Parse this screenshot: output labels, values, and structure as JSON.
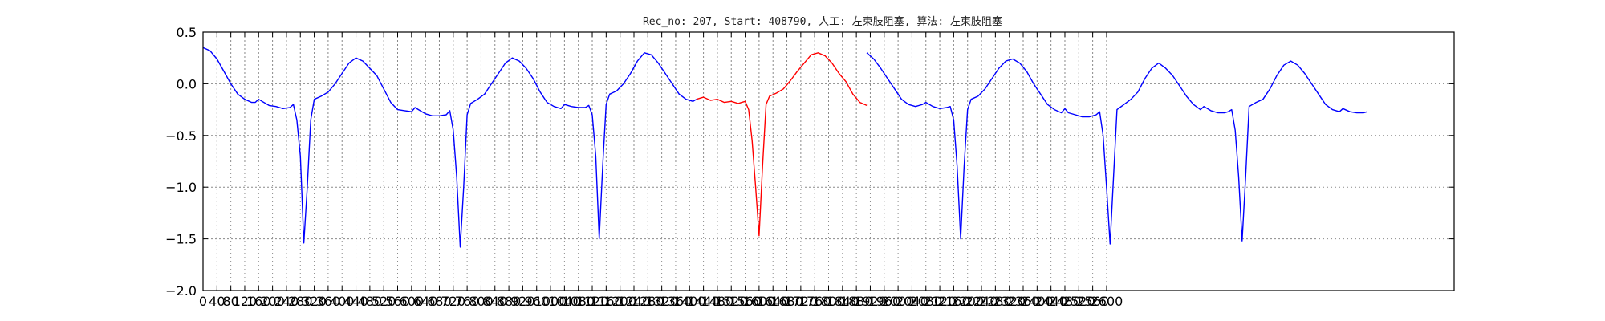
{
  "chart_data": {
    "type": "line",
    "title": "Rec_no: 207, Start: 408790, 人工: 左束肢阻塞, 算法: 左束肢阻塞",
    "xlabel": "",
    "ylabel": "",
    "xlim": [
      0,
      3600
    ],
    "ylim": [
      -2.0,
      0.5
    ],
    "x_ticks": [
      0,
      40,
      80,
      120,
      160,
      200,
      240,
      280,
      320,
      360,
      400,
      440,
      480,
      520,
      560,
      600,
      640,
      680,
      720,
      760,
      800,
      840,
      880,
      920,
      960,
      1000,
      1040,
      1080,
      1120,
      1160,
      1200,
      1240,
      1280,
      1320,
      1360,
      1400,
      1440,
      1480,
      1520,
      1560,
      1600,
      1640,
      1680,
      1720,
      1760,
      1800,
      1840,
      1880,
      1920,
      1960,
      2000,
      2040,
      2080,
      2120,
      2160,
      2200,
      2240,
      2280,
      2320,
      2360,
      2400,
      2440,
      2480,
      2520,
      2560,
      2600
    ],
    "y_ticks": [
      0.5,
      0.0,
      -0.5,
      -1.0,
      -1.5,
      -2.0
    ],
    "y_tick_labels": [
      "0.5",
      "0.0",
      "−0.5",
      "−1.0",
      "−1.5",
      "−2.0"
    ],
    "grid": true,
    "series": [
      {
        "color": "#0000ff",
        "segments": [
          [
            [
              0,
              0.35
            ],
            [
              20,
              0.32
            ],
            [
              40,
              0.24
            ],
            [
              60,
              0.12
            ],
            [
              80,
              0.0
            ],
            [
              100,
              -0.1
            ],
            [
              120,
              -0.15
            ],
            [
              140,
              -0.18
            ],
            [
              150,
              -0.18
            ],
            [
              160,
              -0.15
            ],
            [
              170,
              -0.17
            ],
            [
              190,
              -0.21
            ],
            [
              210,
              -0.22
            ],
            [
              230,
              -0.24
            ],
            [
              250,
              -0.23
            ],
            [
              260,
              -0.2
            ],
            [
              270,
              -0.35
            ],
            [
              280,
              -0.7
            ],
            [
              290,
              -1.54
            ],
            [
              300,
              -1.0
            ],
            [
              310,
              -0.35
            ],
            [
              320,
              -0.15
            ],
            [
              340,
              -0.12
            ],
            [
              360,
              -0.08
            ],
            [
              380,
              0.0
            ],
            [
              400,
              0.1
            ],
            [
              420,
              0.2
            ],
            [
              440,
              0.25
            ],
            [
              460,
              0.22
            ],
            [
              480,
              0.15
            ],
            [
              500,
              0.08
            ],
            [
              520,
              -0.05
            ],
            [
              540,
              -0.18
            ],
            [
              560,
              -0.25
            ],
            [
              580,
              -0.26
            ],
            [
              600,
              -0.27
            ],
            [
              610,
              -0.23
            ],
            [
              620,
              -0.25
            ],
            [
              640,
              -0.29
            ],
            [
              660,
              -0.31
            ],
            [
              680,
              -0.31
            ],
            [
              700,
              -0.3
            ],
            [
              710,
              -0.26
            ],
            [
              720,
              -0.45
            ],
            [
              730,
              -0.9
            ],
            [
              740,
              -1.58
            ],
            [
              750,
              -1.0
            ],
            [
              760,
              -0.3
            ],
            [
              770,
              -0.19
            ],
            [
              790,
              -0.15
            ],
            [
              810,
              -0.1
            ],
            [
              830,
              0.0
            ],
            [
              850,
              0.1
            ],
            [
              870,
              0.2
            ],
            [
              890,
              0.25
            ],
            [
              910,
              0.22
            ],
            [
              930,
              0.15
            ],
            [
              950,
              0.05
            ],
            [
              970,
              -0.08
            ],
            [
              990,
              -0.18
            ],
            [
              1010,
              -0.22
            ],
            [
              1030,
              -0.24
            ],
            [
              1040,
              -0.2
            ],
            [
              1060,
              -0.22
            ],
            [
              1080,
              -0.23
            ],
            [
              1100,
              -0.23
            ],
            [
              1110,
              -0.21
            ],
            [
              1120,
              -0.3
            ],
            [
              1130,
              -0.7
            ],
            [
              1140,
              -1.5
            ],
            [
              1150,
              -0.8
            ],
            [
              1160,
              -0.2
            ],
            [
              1170,
              -0.1
            ],
            [
              1190,
              -0.07
            ],
            [
              1210,
              0.0
            ],
            [
              1230,
              0.1
            ],
            [
              1250,
              0.22
            ],
            [
              1270,
              0.3
            ],
            [
              1290,
              0.28
            ],
            [
              1310,
              0.2
            ],
            [
              1330,
              0.1
            ],
            [
              1350,
              0.0
            ],
            [
              1370,
              -0.1
            ],
            [
              1390,
              -0.15
            ],
            [
              1410,
              -0.17
            ],
            [
              1420,
              -0.15
            ]
          ],
          [
            [
              1910,
              0.3
            ],
            [
              1930,
              0.24
            ],
            [
              1950,
              0.15
            ],
            [
              1970,
              0.05
            ],
            [
              1990,
              -0.05
            ],
            [
              2010,
              -0.15
            ],
            [
              2030,
              -0.2
            ],
            [
              2050,
              -0.22
            ],
            [
              2070,
              -0.2
            ],
            [
              2080,
              -0.18
            ],
            [
              2100,
              -0.22
            ],
            [
              2120,
              -0.24
            ],
            [
              2140,
              -0.23
            ],
            [
              2150,
              -0.22
            ],
            [
              2160,
              -0.35
            ],
            [
              2170,
              -0.8
            ],
            [
              2180,
              -1.5
            ],
            [
              2190,
              -0.8
            ],
            [
              2200,
              -0.25
            ],
            [
              2210,
              -0.15
            ],
            [
              2230,
              -0.12
            ],
            [
              2250,
              -0.05
            ],
            [
              2270,
              0.05
            ],
            [
              2290,
              0.15
            ],
            [
              2310,
              0.22
            ],
            [
              2330,
              0.24
            ],
            [
              2350,
              0.2
            ],
            [
              2370,
              0.12
            ],
            [
              2390,
              0.0
            ],
            [
              2410,
              -0.1
            ],
            [
              2430,
              -0.2
            ],
            [
              2450,
              -0.25
            ],
            [
              2470,
              -0.28
            ],
            [
              2480,
              -0.24
            ],
            [
              2490,
              -0.28
            ],
            [
              2510,
              -0.3
            ],
            [
              2530,
              -0.32
            ],
            [
              2550,
              -0.32
            ],
            [
              2570,
              -0.3
            ],
            [
              2580,
              -0.27
            ],
            [
              2590,
              -0.5
            ],
            [
              2600,
              -1.0
            ],
            [
              2610,
              -1.55
            ],
            [
              2620,
              -0.9
            ],
            [
              2630,
              -0.25
            ],
            [
              2650,
              -0.2
            ],
            [
              2670,
              -0.15
            ],
            [
              2690,
              -0.08
            ],
            [
              2710,
              0.05
            ],
            [
              2730,
              0.15
            ],
            [
              2750,
              0.2
            ],
            [
              2770,
              0.15
            ],
            [
              2790,
              0.08
            ],
            [
              2810,
              -0.02
            ],
            [
              2830,
              -0.12
            ],
            [
              2850,
              -0.2
            ],
            [
              2870,
              -0.25
            ],
            [
              2880,
              -0.22
            ],
            [
              2900,
              -0.26
            ],
            [
              2920,
              -0.28
            ],
            [
              2940,
              -0.28
            ],
            [
              2950,
              -0.27
            ],
            [
              2960,
              -0.25
            ],
            [
              2970,
              -0.45
            ],
            [
              2980,
              -0.9
            ],
            [
              2990,
              -1.52
            ],
            [
              3000,
              -0.9
            ],
            [
              3010,
              -0.22
            ],
            [
              3030,
              -0.18
            ],
            [
              3050,
              -0.15
            ],
            [
              3070,
              -0.05
            ],
            [
              3090,
              0.08
            ],
            [
              3110,
              0.18
            ],
            [
              3130,
              0.22
            ],
            [
              3150,
              0.18
            ],
            [
              3170,
              0.1
            ],
            [
              3190,
              0.0
            ],
            [
              3210,
              -0.1
            ],
            [
              3230,
              -0.2
            ],
            [
              3250,
              -0.25
            ],
            [
              3270,
              -0.27
            ],
            [
              3280,
              -0.24
            ],
            [
              3300,
              -0.27
            ],
            [
              3320,
              -0.28
            ],
            [
              3340,
              -0.28
            ],
            [
              3350,
              -0.27
            ]
          ]
        ]
      },
      {
        "color": "#ff0000",
        "segments": [
          [
            [
              1420,
              -0.15
            ],
            [
              1440,
              -0.13
            ],
            [
              1460,
              -0.16
            ],
            [
              1480,
              -0.15
            ],
            [
              1500,
              -0.18
            ],
            [
              1520,
              -0.17
            ],
            [
              1540,
              -0.19
            ],
            [
              1550,
              -0.18
            ],
            [
              1560,
              -0.17
            ],
            [
              1570,
              -0.25
            ],
            [
              1580,
              -0.55
            ],
            [
              1590,
              -1.0
            ],
            [
              1600,
              -1.47
            ],
            [
              1610,
              -0.8
            ],
            [
              1620,
              -0.2
            ],
            [
              1630,
              -0.12
            ],
            [
              1650,
              -0.09
            ],
            [
              1670,
              -0.05
            ],
            [
              1690,
              0.03
            ],
            [
              1710,
              0.12
            ],
            [
              1730,
              0.2
            ],
            [
              1750,
              0.28
            ],
            [
              1770,
              0.3
            ],
            [
              1790,
              0.27
            ],
            [
              1810,
              0.2
            ],
            [
              1830,
              0.1
            ],
            [
              1850,
              0.02
            ],
            [
              1870,
              -0.1
            ],
            [
              1890,
              -0.18
            ],
            [
              1910,
              -0.21
            ]
          ]
        ]
      }
    ]
  }
}
